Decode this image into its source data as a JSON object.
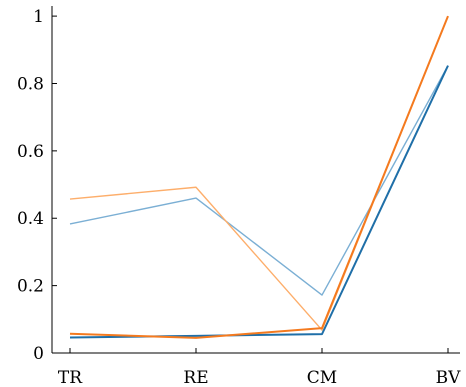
{
  "chart_data": {
    "type": "line",
    "title": "",
    "xlabel": "",
    "ylabel": "",
    "categories": [
      "TR",
      "RE",
      "CM",
      "BV"
    ],
    "ylim": [
      0,
      1.03
    ],
    "yticks": [
      0,
      0.2,
      0.4,
      0.6,
      0.8,
      1
    ],
    "ytick_labels": [
      "0",
      "0.2",
      "0.4",
      "0.6",
      "0.8",
      "1"
    ],
    "grid": false,
    "legend": "none",
    "series": [
      {
        "color": "#7BAFD4",
        "values": [
          0.383,
          0.46,
          0.172,
          0.853
        ]
      },
      {
        "color": "#FDAE6B",
        "values": [
          0.457,
          0.492,
          0.068,
          1.0
        ]
      },
      {
        "color": "#1F6FA8",
        "values": [
          0.046,
          0.051,
          0.056,
          0.853
        ]
      },
      {
        "color": "#F47A1F",
        "values": [
          0.057,
          0.045,
          0.074,
          1.0
        ]
      }
    ]
  }
}
